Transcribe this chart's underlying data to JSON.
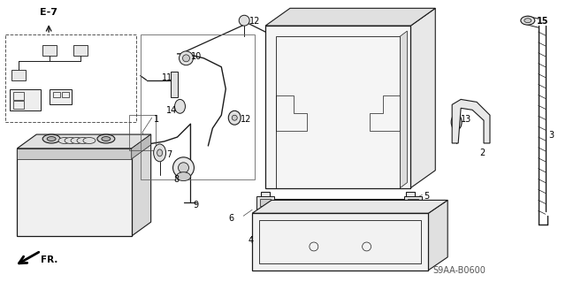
{
  "bg_color": "#ffffff",
  "line_color": "#000000",
  "fig_width": 6.4,
  "fig_height": 3.19,
  "dpi": 100,
  "diagram_code": "S9AA-B0600"
}
